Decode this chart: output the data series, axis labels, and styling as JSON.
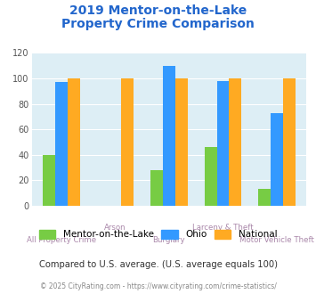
{
  "title_line1": "2019 Mentor-on-the-Lake",
  "title_line2": "Property Crime Comparison",
  "categories": [
    "All Property Crime",
    "Arson",
    "Burglary",
    "Larceny & Theft",
    "Motor Vehicle Theft"
  ],
  "mentor_values": [
    40,
    0,
    28,
    46,
    13
  ],
  "ohio_values": [
    97,
    0,
    110,
    98,
    73
  ],
  "national_values": [
    100,
    100,
    100,
    100,
    100
  ],
  "mentor_color": "#77cc44",
  "ohio_color": "#3399ff",
  "national_color": "#ffaa22",
  "title_color": "#2266cc",
  "bg_color": "#ddeef5",
  "ylabel_ticks": [
    0,
    20,
    40,
    60,
    80,
    100,
    120
  ],
  "note_text": "Compared to U.S. average. (U.S. average equals 100)",
  "footer_text": "© 2025 CityRating.com - https://www.cityrating.com/crime-statistics/",
  "legend_labels": [
    "Mentor-on-the-Lake",
    "Ohio",
    "National"
  ],
  "note_color": "#333333",
  "footer_color": "#888888",
  "xlabel_color": "#aa88aa"
}
